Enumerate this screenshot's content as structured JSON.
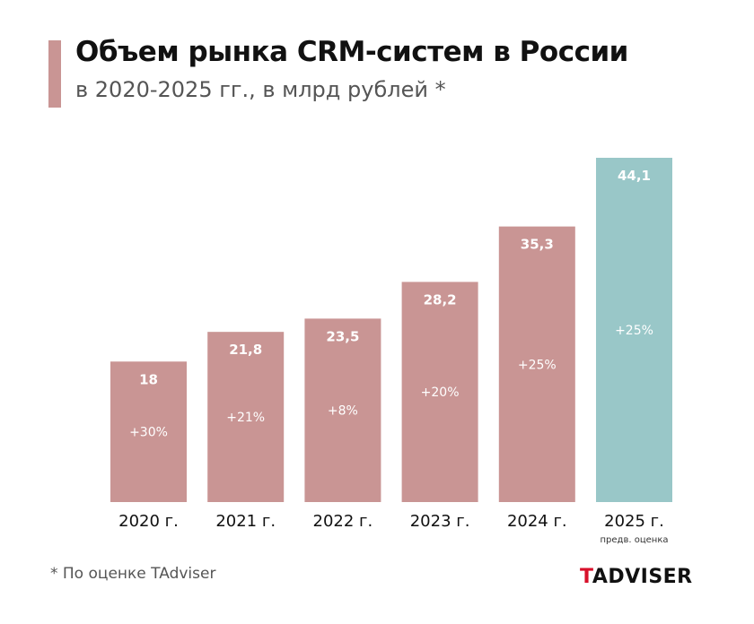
{
  "title": "Объем рынка CRM-систем в России",
  "subtitle": "в 2020-2025 гг., в млрд рублей *",
  "footnote": "* По оценке TAdviser",
  "logo": "TADVISER",
  "chart_data": {
    "type": "bar",
    "categories": [
      "2020 г.",
      "2021 г.",
      "2022 г.",
      "2023 г.",
      "2024 г.",
      "2025 г."
    ],
    "category_notes": [
      "",
      "",
      "",
      "",
      "",
      "предв. оценка"
    ],
    "values": [
      18,
      21.8,
      23.5,
      28.2,
      35.3,
      44.1
    ],
    "value_labels": [
      "18",
      "21,8",
      "23,5",
      "28,2",
      "35,3",
      "44,1"
    ],
    "growth_labels": [
      "+30%",
      "+21%",
      "+8%",
      "+20%",
      "+25%",
      "+25%"
    ],
    "colors": [
      "#c99594",
      "#c99594",
      "#c99594",
      "#c99594",
      "#c99594",
      "#99c7c8"
    ],
    "ylim": [
      0,
      44.1
    ],
    "grid": false
  }
}
